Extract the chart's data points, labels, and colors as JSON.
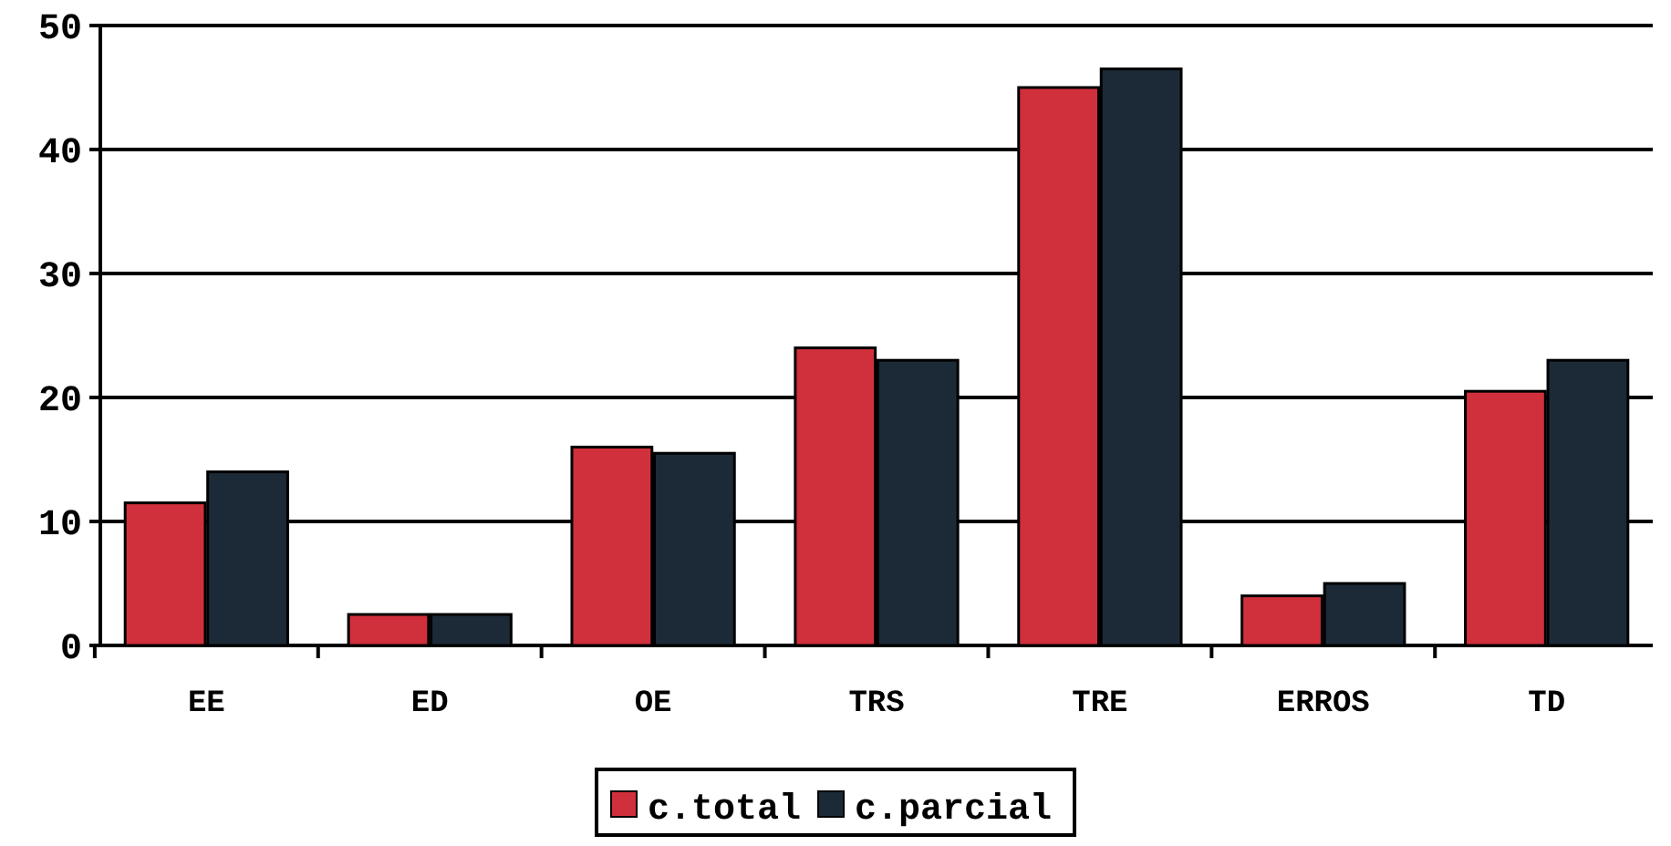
{
  "chart_data": {
    "type": "bar",
    "categories": [
      "EE",
      "ED",
      "OE",
      "TRS",
      "TRE",
      "ERROS",
      "TD"
    ],
    "series": [
      {
        "name": "c.total",
        "color": "#d0303c",
        "values": [
          11.5,
          2.5,
          16,
          24,
          45,
          4,
          20.5
        ]
      },
      {
        "name": "c.parcial",
        "color": "#1c2a38",
        "values": [
          14,
          2.5,
          15.5,
          23,
          46.5,
          5,
          23
        ]
      }
    ],
    "ylim": [
      0,
      50
    ],
    "yticks": [
      0,
      10,
      20,
      30,
      40,
      50
    ],
    "grid": "y",
    "legend": "bottom"
  }
}
